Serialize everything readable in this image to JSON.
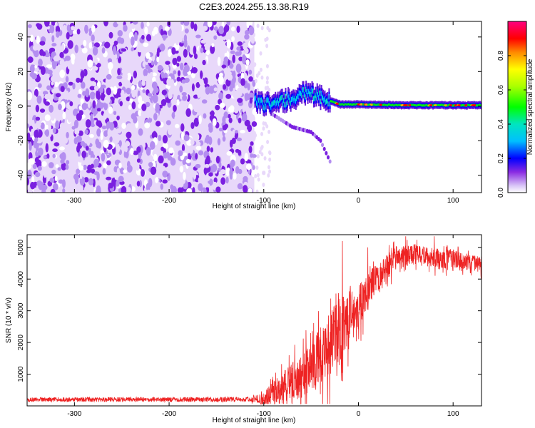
{
  "title": "C2E3.2024.255.13.38.R19",
  "colors": {
    "snr_line": "#ee2222",
    "purple_light": "#e8d8fa",
    "purple_mid": "#b48ef0",
    "purple_dark": "#7a1fe0"
  },
  "chart_data": [
    {
      "type": "heatmap",
      "xlabel": "Height of straight line (km)",
      "ylabel": "Frequency (Hz)",
      "xlim": [
        -350,
        130
      ],
      "ylim": [
        -50,
        49
      ],
      "xticks": [
        -300,
        -200,
        -100,
        0,
        100
      ],
      "yticks": [
        -40,
        -20,
        0,
        20,
        40
      ],
      "colorbar": {
        "label": "Normalized spectral amplitude",
        "range": [
          0.0,
          1.0
        ],
        "ticks": [
          0.0,
          0.2,
          0.4,
          0.6,
          0.8
        ],
        "colormap": "rainbow (white-purple-blue-cyan-green-yellow-orange-red-magenta)"
      },
      "regions": [
        {
          "x_range": [
            -350,
            -110
          ],
          "y_range": [
            -50,
            49
          ],
          "amplitude": "low, noise (0.0-0.15)"
        },
        {
          "x_range": [
            -110,
            130
          ],
          "center_frequency_hz": 0,
          "width_hz": 4,
          "amplitude": "0.2-0.95"
        }
      ],
      "carrier_trace": [
        {
          "x": -110,
          "y": 3
        },
        {
          "x": -100,
          "y": 1
        },
        {
          "x": -90,
          "y": 2
        },
        {
          "x": -80,
          "y": 3
        },
        {
          "x": -70,
          "y": 4
        },
        {
          "x": -60,
          "y": 8
        },
        {
          "x": -50,
          "y": 7
        },
        {
          "x": -40,
          "y": 5
        },
        {
          "x": -30,
          "y": 3
        },
        {
          "x": -20,
          "y": 1
        },
        {
          "x": 0,
          "y": 1
        },
        {
          "x": 50,
          "y": 0.5
        },
        {
          "x": 130,
          "y": 0.5
        }
      ],
      "secondary_trace": [
        {
          "x": -90,
          "y": -5
        },
        {
          "x": -70,
          "y": -12
        },
        {
          "x": -50,
          "y": -15
        },
        {
          "x": -40,
          "y": -20
        },
        {
          "x": -30,
          "y": -32
        }
      ]
    },
    {
      "type": "line",
      "xlabel": "Height of straight line (km)",
      "ylabel": "SNR (10 * v/v)",
      "xlim": [
        -350,
        130
      ],
      "ylim": [
        0,
        5400
      ],
      "xticks": [
        -300,
        -200,
        -100,
        0,
        100
      ],
      "yticks": [
        1000,
        2000,
        3000,
        4000,
        5000
      ],
      "series": [
        {
          "envelope": [
            {
              "x": -350,
              "y": 200
            },
            {
              "x": -120,
              "y": 200
            },
            {
              "x": -100,
              "y": 260
            },
            {
              "x": -85,
              "y": 500
            },
            {
              "x": -70,
              "y": 900
            },
            {
              "x": -50,
              "y": 1300
            },
            {
              "x": -40,
              "y": 1700
            },
            {
              "x": -30,
              "y": 2000
            },
            {
              "x": -20,
              "y": 2500
            },
            {
              "x": -10,
              "y": 2900
            },
            {
              "x": 0,
              "y": 3200
            },
            {
              "x": 10,
              "y": 3700
            },
            {
              "x": 20,
              "y": 4100
            },
            {
              "x": 40,
              "y": 4700
            },
            {
              "x": 60,
              "y": 4800
            },
            {
              "x": 80,
              "y": 4700
            },
            {
              "x": 100,
              "y": 4650
            },
            {
              "x": 130,
              "y": 4500
            }
          ],
          "noise_amplitude": [
            {
              "x": -350,
              "y": 70
            },
            {
              "x": -110,
              "y": 80
            },
            {
              "x": -90,
              "y": 400
            },
            {
              "x": -60,
              "y": 700
            },
            {
              "x": -30,
              "y": 1100
            },
            {
              "x": -10,
              "y": 900
            },
            {
              "x": 10,
              "y": 500
            },
            {
              "x": 40,
              "y": 350
            },
            {
              "x": 130,
              "y": 250
            }
          ],
          "spikes": [
            {
              "x": -17,
              "y": 5200
            },
            {
              "x": 10,
              "y": 5000
            },
            {
              "x": 50,
              "y": 5350
            },
            {
              "x": 80,
              "y": 5350
            }
          ]
        }
      ]
    }
  ]
}
